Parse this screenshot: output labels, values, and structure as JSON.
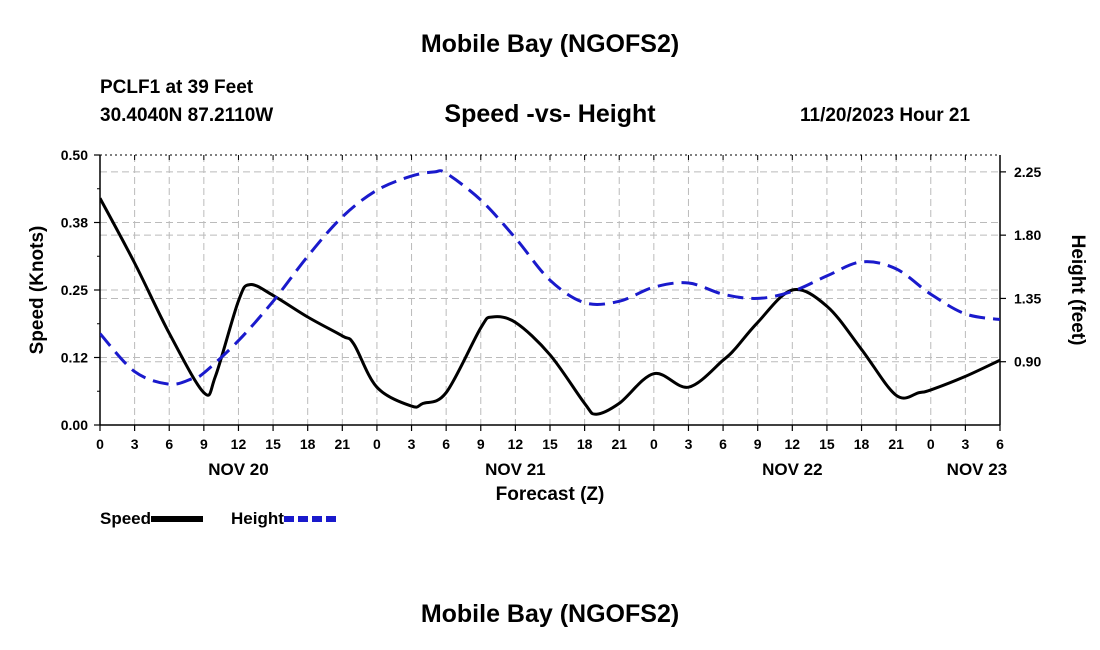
{
  "header": {
    "title": "Mobile Bay (NGOFS2)",
    "station": "PCLF1 at 39 Feet",
    "coordinates": "30.4040N  87.2110W",
    "subtitle": "Speed -vs- Height",
    "datetime": "11/20/2023 Hour 21"
  },
  "footer": {
    "title": "Mobile Bay (NGOFS2)"
  },
  "legend": {
    "speed_label": "Speed",
    "height_label": "Height"
  },
  "colors": {
    "speed": "#000000",
    "height": "#1a1acc",
    "grid": "#bbbbbb"
  },
  "chart_data": {
    "type": "line",
    "xlabel": "Forecast (Z)",
    "ylabel": "Speed (Knots)",
    "y2label": "Height (feet)",
    "xlim": [
      0,
      78
    ],
    "ylim": [
      0,
      0.5
    ],
    "y2lim": [
      0.45,
      2.37
    ],
    "x_ticks": [
      0,
      3,
      6,
      9,
      12,
      15,
      18,
      21,
      24,
      27,
      30,
      33,
      36,
      39,
      42,
      45,
      48,
      51,
      54,
      57,
      60,
      63,
      66,
      69,
      72,
      75,
      78
    ],
    "x_tick_labels": [
      "0",
      "3",
      "6",
      "9",
      "12",
      "15",
      "18",
      "21",
      "0",
      "3",
      "6",
      "9",
      "12",
      "15",
      "18",
      "21",
      "0",
      "3",
      "6",
      "9",
      "12",
      "15",
      "18",
      "21",
      "0",
      "3",
      "6"
    ],
    "date_labels": [
      {
        "x": 12,
        "label": "NOV 20"
      },
      {
        "x": 36,
        "label": "NOV 21"
      },
      {
        "x": 60,
        "label": "NOV 22"
      },
      {
        "x": 76,
        "label": "NOV 23"
      }
    ],
    "y_ticks": [
      0.0,
      0.125,
      0.25,
      0.375,
      0.5
    ],
    "y_tick_labels": [
      "0.00",
      "0.12",
      "0.25",
      "0.38",
      "0.50"
    ],
    "y2_ticks": [
      0.9,
      1.35,
      1.8,
      2.25
    ],
    "y2_tick_labels": [
      "0.90",
      "1.35",
      "1.80",
      "2.25"
    ],
    "grid": true,
    "series": [
      {
        "name": "Speed",
        "axis": "left",
        "style": "solid",
        "x": [
          0,
          3,
          6,
          9,
          10,
          12,
          13,
          15,
          18,
          21,
          22,
          24,
          27,
          28,
          30,
          33,
          34,
          36,
          39,
          42,
          43,
          45,
          48,
          51,
          54,
          55,
          57,
          60,
          63,
          66,
          69,
          71,
          72,
          75,
          78
        ],
        "values": [
          0.42,
          0.3,
          0.17,
          0.06,
          0.09,
          0.23,
          0.26,
          0.24,
          0.2,
          0.165,
          0.15,
          0.07,
          0.035,
          0.04,
          0.06,
          0.18,
          0.2,
          0.19,
          0.13,
          0.04,
          0.02,
          0.04,
          0.095,
          0.07,
          0.12,
          0.14,
          0.19,
          0.25,
          0.22,
          0.14,
          0.055,
          0.06,
          0.065,
          0.09,
          0.12
        ]
      },
      {
        "name": "Height",
        "axis": "right",
        "style": "dashed",
        "x": [
          0,
          3,
          6,
          8,
          9,
          12,
          15,
          18,
          21,
          24,
          27,
          29,
          30,
          33,
          36,
          39,
          42,
          45,
          48,
          51,
          54,
          57,
          60,
          63,
          66,
          69,
          72,
          75,
          78
        ],
        "values": [
          1.1,
          0.83,
          0.74,
          0.78,
          0.82,
          1.05,
          1.33,
          1.65,
          1.93,
          2.12,
          2.22,
          2.25,
          2.24,
          2.05,
          1.78,
          1.48,
          1.32,
          1.33,
          1.43,
          1.46,
          1.38,
          1.35,
          1.4,
          1.51,
          1.61,
          1.56,
          1.38,
          1.24,
          1.2
        ]
      }
    ]
  }
}
